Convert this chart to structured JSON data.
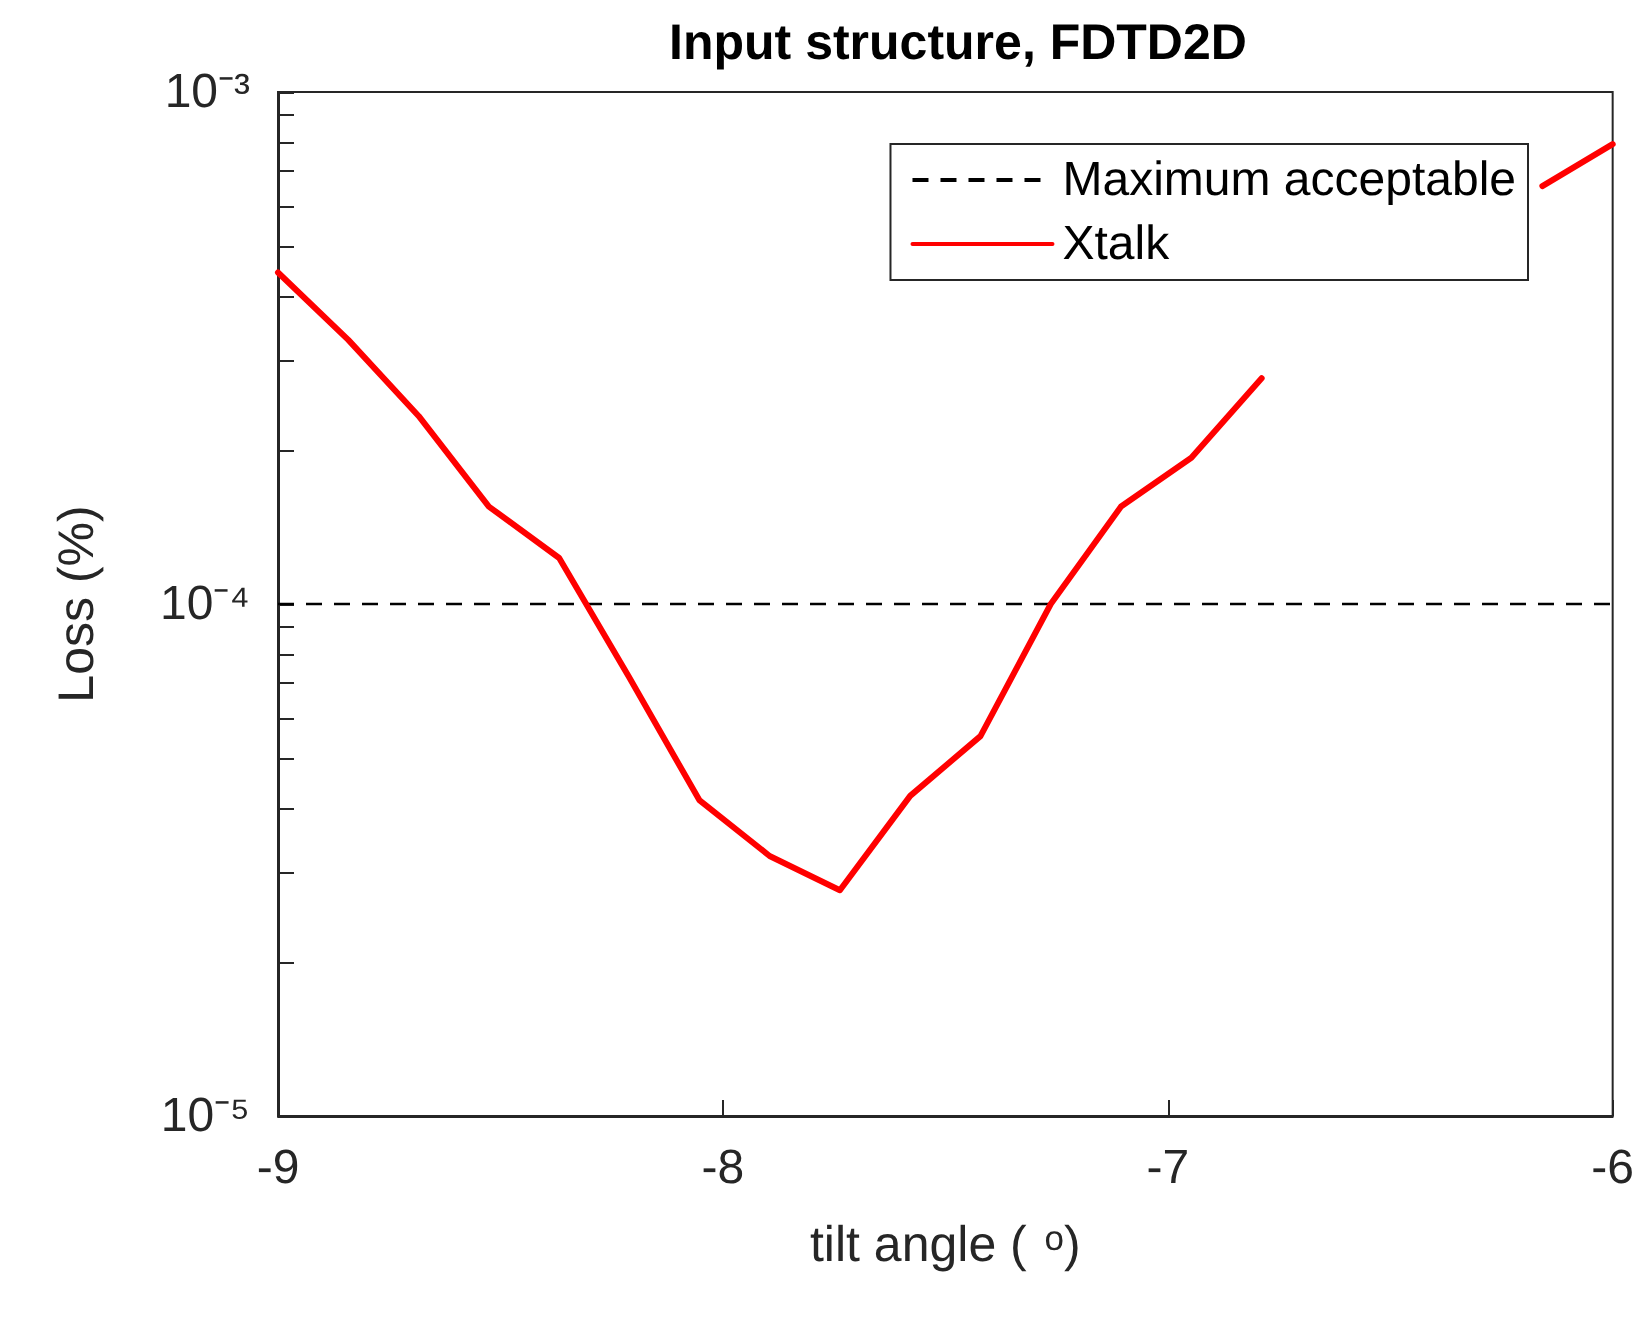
{
  "chart_data": {
    "type": "line",
    "title": "Input structure, FDTD2D",
    "xlabel": "tilt angle ( $^{o}$)",
    "ylabel": "Loss (%)",
    "x": [
      -9,
      -8.842,
      -8.684,
      -8.526,
      -8.368,
      -8.211,
      -8.053,
      -7.895,
      -7.737,
      -7.579,
      -7.421,
      -7.263,
      -7.105,
      -6.947,
      -6.789,
      -6.632,
      -6.474,
      -6.316,
      -6.158,
      -6
    ],
    "series": [
      {
        "name": "Xtalk",
        "color": "#ff0000",
        "values": [
          0.000444,
          0.000328,
          0.000233,
          0.000155,
          0.000123,
          7.2e-05,
          4.14e-05,
          3.22e-05,
          2.76e-05,
          4.22e-05,
          5.52e-05,
          0.0001,
          0.000155,
          0.000193,
          0.000276,
          null,
          null,
          null,
          0.000655,
          0.000791
        ]
      }
    ],
    "ref_lines": [
      {
        "axis": "y",
        "value": 0.0001,
        "label": "Maximum acceptable",
        "color": "#000000",
        "line_style": "dashed"
      }
    ],
    "log": "y",
    "xlim": [
      -9,
      -6
    ],
    "xticks": [
      -9,
      -8,
      -7,
      -6
    ],
    "ylim": [
      1e-05,
      0.001
    ],
    "yticks": [
      {
        "value": 1e-05,
        "label": "10⁻⁵"
      },
      {
        "value": 2e-05,
        "label": null
      },
      {
        "value": 3e-05,
        "label": null
      },
      {
        "value": 4e-05,
        "label": null
      },
      {
        "value": 5e-05,
        "label": null
      },
      {
        "value": 6e-05,
        "label": null
      },
      {
        "value": 7e-05,
        "label": null
      },
      {
        "value": 8e-05,
        "label": null
      },
      {
        "value": 9e-05,
        "label": null
      },
      {
        "value": 0.0001,
        "label": "10⁻⁴"
      },
      {
        "value": 0.0002,
        "label": null
      },
      {
        "value": 0.0003,
        "label": null
      },
      {
        "value": 0.0004,
        "label": null
      },
      {
        "value": 0.0005,
        "label": null
      },
      {
        "value": 0.0006,
        "label": null
      },
      {
        "value": 0.0007,
        "label": null
      },
      {
        "value": 0.0008,
        "label": null
      },
      {
        "value": 0.0009,
        "label": null
      },
      {
        "value": 0.001,
        "label": "10⁻³"
      }
    ],
    "grid": false,
    "legend": "top right",
    "marker": "none",
    "line_style": "solid"
  }
}
